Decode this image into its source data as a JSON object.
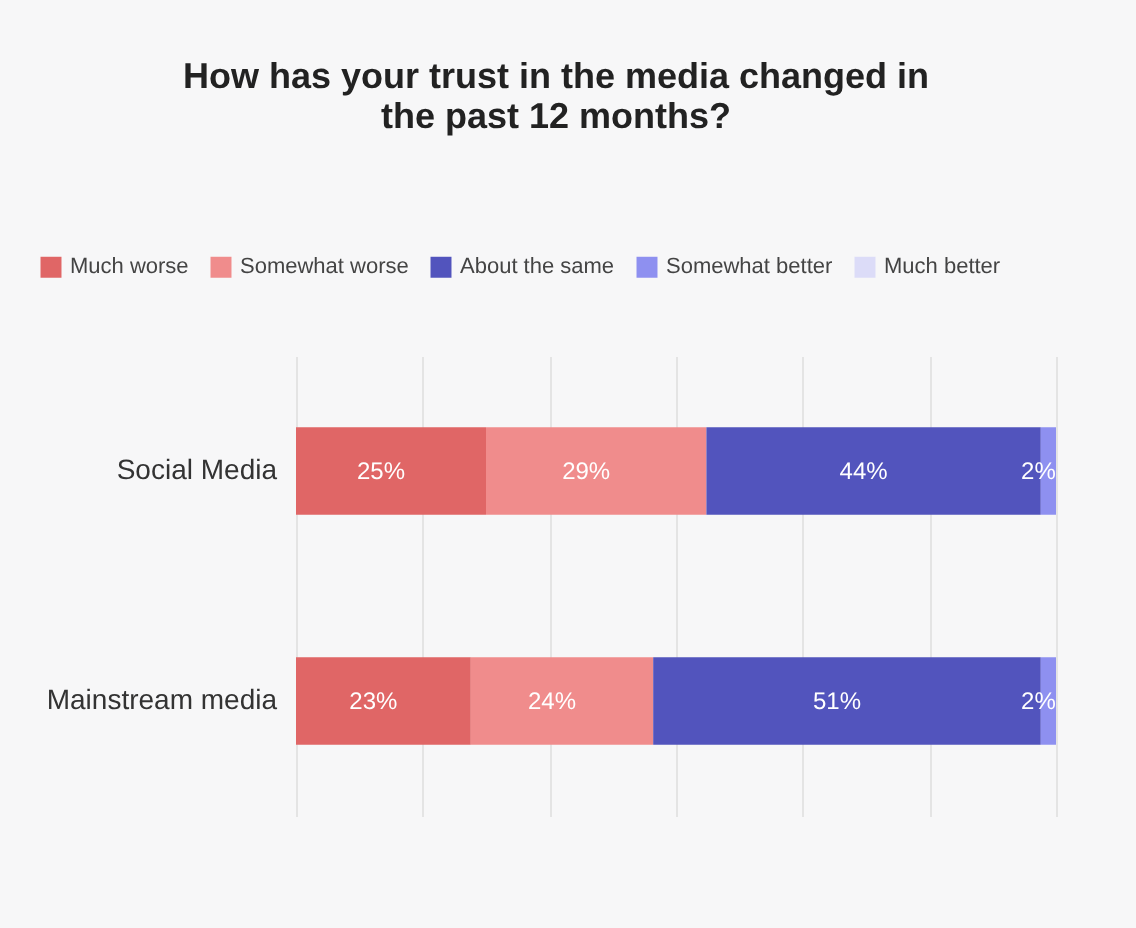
{
  "chart_data": {
    "type": "bar",
    "orientation": "horizontal",
    "stacked": true,
    "title": "How has your trust in the media changed in\nthe past 12 months?",
    "categories": [
      "Social Media",
      "Mainstream media"
    ],
    "series": [
      {
        "name": "Much worse",
        "color": "#e06666",
        "values": [
          25,
          23
        ],
        "value_labels": [
          "25%",
          "23%"
        ]
      },
      {
        "name": "Somewhat worse",
        "color": "#f08c8c",
        "values": [
          29,
          24
        ],
        "value_labels": [
          "29%",
          "24%"
        ]
      },
      {
        "name": "About the same",
        "color": "#5254bd",
        "values": [
          44,
          51
        ],
        "value_labels": [
          "44%",
          "51%"
        ]
      },
      {
        "name": "Somewhat better",
        "color": "#8e90f0",
        "values": [
          2,
          2
        ],
        "value_labels": [
          "2%",
          "2%"
        ]
      },
      {
        "name": "Much better",
        "color": "#dcdcf8",
        "values": [
          0,
          0
        ],
        "value_labels": [
          null,
          null
        ]
      }
    ],
    "xlim": [
      0,
      100
    ],
    "xticks": [
      {
        "value": 0,
        "label": null
      },
      {
        "value": 16.7,
        "label": null
      },
      {
        "value": 33.3,
        "label": null
      },
      {
        "value": 50,
        "label": null
      },
      {
        "value": 66.7,
        "label": null
      },
      {
        "value": 83.3,
        "label": null
      },
      {
        "value": 100,
        "label": null
      }
    ],
    "grid": "x",
    "legend": "top",
    "tick_labels": "y"
  }
}
